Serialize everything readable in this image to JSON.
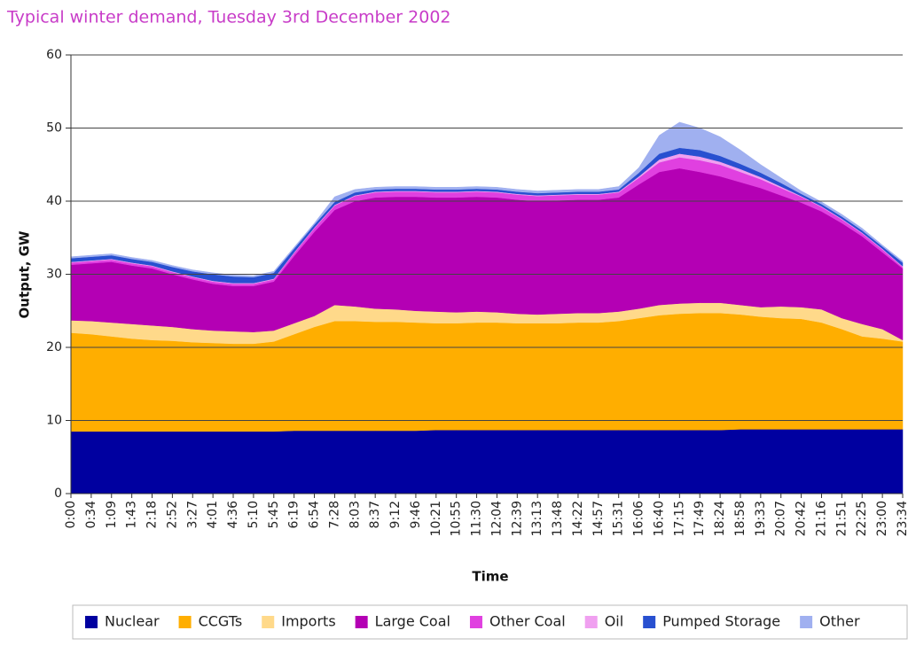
{
  "chart_data": {
    "type": "stacked_area",
    "title": "Typical winter demand, Tuesday 3rd December 2002",
    "y_label": "Output, GW",
    "x_label": "Time",
    "categories": [
      "0:00",
      "0:34",
      "1:09",
      "1:43",
      "2:18",
      "2:52",
      "3:27",
      "4:01",
      "4:36",
      "5:10",
      "5:45",
      "6:19",
      "6:54",
      "7:28",
      "8:03",
      "8:37",
      "9:12",
      "9:46",
      "10:21",
      "10:55",
      "11:30",
      "12:04",
      "12:39",
      "13:13",
      "13:48",
      "14:22",
      "14:57",
      "15:31",
      "16:06",
      "16:40",
      "17:15",
      "17:49",
      "18:24",
      "18:58",
      "19:33",
      "20:07",
      "20:42",
      "21:16",
      "21:51",
      "22:25",
      "23:00",
      "23:34"
    ],
    "ylim": [
      0,
      60
    ],
    "yticks": [
      0,
      10,
      20,
      30,
      40,
      50,
      60
    ],
    "grid": true,
    "legend": "bottom",
    "series": [
      {
        "name": "Nuclear",
        "color": "#0000a0",
        "values": [
          8.5,
          8.5,
          8.5,
          8.5,
          8.5,
          8.5,
          8.5,
          8.5,
          8.5,
          8.5,
          8.5,
          8.6,
          8.6,
          8.6,
          8.6,
          8.6,
          8.6,
          8.6,
          8.7,
          8.7,
          8.7,
          8.7,
          8.7,
          8.7,
          8.7,
          8.7,
          8.7,
          8.7,
          8.7,
          8.7,
          8.7,
          8.7,
          8.7,
          8.8,
          8.8,
          8.8,
          8.8,
          8.8,
          8.8,
          8.8,
          8.8,
          8.8
        ]
      },
      {
        "name": "CCGTs",
        "color": "#ffae00",
        "values": [
          13.5,
          13.3,
          13.0,
          12.7,
          12.5,
          12.4,
          12.2,
          12.1,
          12.0,
          12.0,
          12.3,
          13.2,
          14.2,
          15.0,
          15.0,
          14.9,
          14.9,
          14.8,
          14.6,
          14.6,
          14.7,
          14.7,
          14.6,
          14.6,
          14.6,
          14.7,
          14.7,
          14.9,
          15.3,
          15.7,
          15.9,
          16.0,
          16.0,
          15.7,
          15.4,
          15.2,
          15.1,
          14.6,
          13.7,
          12.7,
          12.4,
          12.0
        ]
      },
      {
        "name": "Imports",
        "color": "#ffd98a",
        "values": [
          1.7,
          1.8,
          1.9,
          2.0,
          2.0,
          1.9,
          1.8,
          1.7,
          1.7,
          1.6,
          1.5,
          1.5,
          1.5,
          2.2,
          2.0,
          1.8,
          1.7,
          1.6,
          1.6,
          1.5,
          1.5,
          1.4,
          1.3,
          1.2,
          1.3,
          1.3,
          1.3,
          1.3,
          1.3,
          1.4,
          1.4,
          1.4,
          1.4,
          1.3,
          1.3,
          1.6,
          1.6,
          1.8,
          1.5,
          1.7,
          1.3,
          0.2
        ]
      },
      {
        "name": "Large Coal",
        "color": "#b400b4",
        "values": [
          7.6,
          7.9,
          8.3,
          8.0,
          7.8,
          7.2,
          6.8,
          6.4,
          6.2,
          6.3,
          6.7,
          9.2,
          11.5,
          13.0,
          14.4,
          15.2,
          15.4,
          15.6,
          15.6,
          15.7,
          15.7,
          15.7,
          15.6,
          15.5,
          15.5,
          15.5,
          15.5,
          15.6,
          17.0,
          18.2,
          18.5,
          17.9,
          17.3,
          16.8,
          16.3,
          15.2,
          14.3,
          13.4,
          13.0,
          12.0,
          10.5,
          9.8
        ]
      },
      {
        "name": "Other Coal",
        "color": "#e040e0",
        "values": [
          0.3,
          0.3,
          0.3,
          0.3,
          0.3,
          0.3,
          0.3,
          0.3,
          0.3,
          0.3,
          0.3,
          0.4,
          0.5,
          0.6,
          0.7,
          0.7,
          0.7,
          0.7,
          0.7,
          0.7,
          0.7,
          0.7,
          0.7,
          0.7,
          0.7,
          0.7,
          0.7,
          0.7,
          0.9,
          1.3,
          1.5,
          1.6,
          1.6,
          1.4,
          1.2,
          1.0,
          0.8,
          0.6,
          0.5,
          0.4,
          0.4,
          0.2
        ]
      },
      {
        "name": "Oil",
        "color": "#f0a0f0",
        "values": [
          0.1,
          0.1,
          0.1,
          0.1,
          0.1,
          0.1,
          0.1,
          0.1,
          0.1,
          0.1,
          0.1,
          0.1,
          0.1,
          0.1,
          0.1,
          0.1,
          0.1,
          0.1,
          0.1,
          0.1,
          0.1,
          0.1,
          0.1,
          0.1,
          0.1,
          0.1,
          0.1,
          0.1,
          0.2,
          0.4,
          0.5,
          0.5,
          0.4,
          0.4,
          0.3,
          0.2,
          0.1,
          0.1,
          0.1,
          0.1,
          0.1,
          0.1
        ]
      },
      {
        "name": "Pumped Storage",
        "color": "#2850d0",
        "values": [
          0.5,
          0.5,
          0.5,
          0.5,
          0.5,
          0.6,
          0.7,
          0.9,
          0.9,
          0.8,
          0.8,
          0.5,
          0.4,
          0.4,
          0.4,
          0.3,
          0.3,
          0.3,
          0.3,
          0.3,
          0.3,
          0.3,
          0.3,
          0.3,
          0.3,
          0.3,
          0.3,
          0.3,
          0.5,
          0.8,
          0.8,
          0.9,
          0.8,
          0.7,
          0.6,
          0.5,
          0.3,
          0.3,
          0.3,
          0.3,
          0.3,
          0.5
        ]
      },
      {
        "name": "Other",
        "color": "#a0b0f0",
        "values": [
          0.2,
          0.2,
          0.2,
          0.2,
          0.2,
          0.2,
          0.2,
          0.2,
          0.2,
          0.2,
          0.2,
          0.2,
          0.2,
          0.7,
          0.4,
          0.3,
          0.3,
          0.3,
          0.3,
          0.3,
          0.3,
          0.3,
          0.3,
          0.3,
          0.3,
          0.3,
          0.3,
          0.4,
          0.7,
          2.5,
          3.5,
          3.0,
          2.6,
          1.9,
          1.1,
          0.7,
          0.4,
          0.3,
          0.3,
          0.3,
          0.2,
          0.2
        ]
      }
    ]
  }
}
